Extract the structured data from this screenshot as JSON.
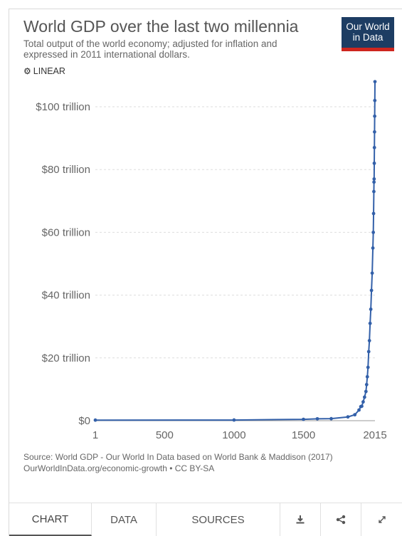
{
  "header": {
    "title": "World GDP over the last two millennia",
    "subtitle": "Total output of the world economy; adjusted for inflation and expressed in 2011 international dollars.",
    "logo_line1": "Our World",
    "logo_line2": "in Data",
    "scale_toggle_label": "LINEAR"
  },
  "footer": {
    "source_line1": "Source: World GDP - Our World In Data based on World Bank & Maddison (2017)",
    "source_line2": "OurWorldInData.org/economic-growth • CC BY-SA",
    "tabs": [
      {
        "label": "CHART"
      },
      {
        "label": "DATA"
      },
      {
        "label": "SOURCES"
      }
    ],
    "icons": [
      "download-icon",
      "share-icon",
      "expand-icon"
    ]
  },
  "colors": {
    "line": "#3360a9",
    "logo_bg": "#1d3d63",
    "logo_bar": "#ce261e",
    "grid": "#dddddd"
  },
  "chart_data": {
    "type": "line",
    "title": "World GDP over the last two millennia",
    "xlabel": "",
    "ylabel": "",
    "x_ticks": [
      1,
      500,
      1000,
      1500,
      2015
    ],
    "x_tick_labels": [
      "1",
      "500",
      "1000",
      "1500",
      "2015"
    ],
    "y_ticks": [
      0,
      20,
      40,
      60,
      80,
      100
    ],
    "y_tick_labels": [
      "$0",
      "$20 trillion",
      "$40 trillion",
      "$60 trillion",
      "$80 trillion",
      "$100 trillion"
    ],
    "xlim": [
      1,
      2015
    ],
    "ylim": [
      0,
      108
    ],
    "grid": true,
    "series": [
      {
        "x": [
          1,
          1000,
          1500,
          1600,
          1700,
          1820,
          1870,
          1900,
          1913,
          1920,
          1930,
          1940,
          1950,
          1955,
          1960,
          1965,
          1970,
          1975,
          1980,
          1985,
          1990,
          1995,
          2000,
          2003,
          2005,
          2007,
          2008,
          2009,
          2010,
          2011,
          2012,
          2013,
          2014,
          2015
        ],
        "y": [
          0.18,
          0.21,
          0.43,
          0.6,
          0.64,
          1.2,
          1.9,
          3.4,
          4.5,
          4.6,
          6.0,
          7.5,
          9.3,
          11.5,
          14.0,
          17.0,
          22.0,
          25.5,
          31.0,
          35.5,
          41.5,
          47.0,
          55.0,
          60.0,
          66.0,
          73.0,
          76.0,
          77.0,
          82.0,
          87.0,
          92.0,
          97.0,
          102.0,
          108.0
        ]
      }
    ]
  }
}
